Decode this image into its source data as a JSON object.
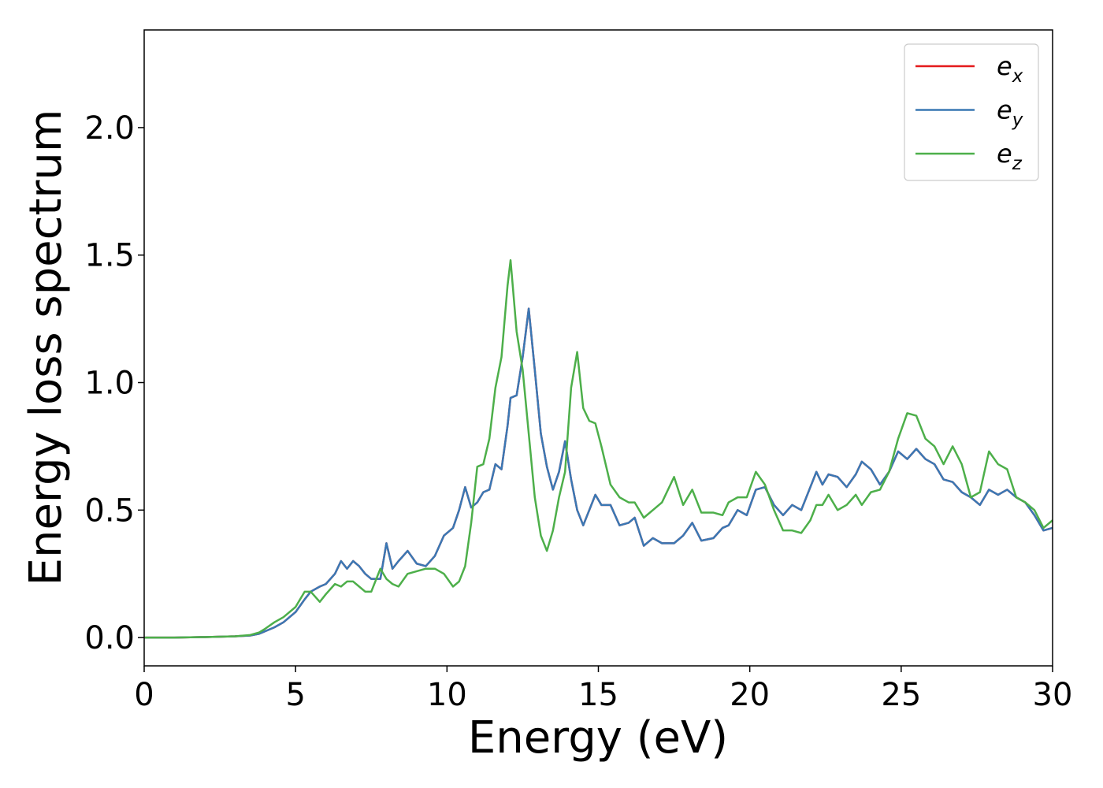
{
  "chart_data": {
    "type": "line",
    "x_label": "Energy (eV)",
    "y_label": "Energy loss spectrum",
    "xlim": [
      0,
      30
    ],
    "ylim": [
      -0.111,
      2.383
    ],
    "xticks": [
      0,
      5,
      10,
      15,
      20,
      25,
      30
    ],
    "yticks": [
      {
        "value": 0,
        "label": "0.0"
      },
      {
        "value": 0.5,
        "label": "0.5"
      },
      {
        "value": 1,
        "label": "1.0"
      },
      {
        "value": 1.5,
        "label": "1.5"
      },
      {
        "value": 2,
        "label": "2.0"
      }
    ],
    "legend": "upper right",
    "grid": false,
    "x": [
      0,
      1,
      2,
      3,
      3.5,
      3.8,
      4,
      4.3,
      4.6,
      5,
      5.3,
      5.5,
      5.8,
      6,
      6.3,
      6.5,
      6.7,
      6.9,
      7.1,
      7.3,
      7.5,
      7.8,
      8,
      8.2,
      8.4,
      8.7,
      9,
      9.3,
      9.6,
      9.9,
      10.2,
      10.4,
      10.6,
      10.8,
      11,
      11.2,
      11.4,
      11.6,
      11.8,
      12,
      12.1,
      12.3,
      12.5,
      12.7,
      12.9,
      13.1,
      13.3,
      13.5,
      13.7,
      13.9,
      14.1,
      14.3,
      14.5,
      14.7,
      14.9,
      15.1,
      15.4,
      15.7,
      16,
      16.2,
      16.5,
      16.8,
      17.1,
      17.5,
      17.8,
      18.1,
      18.4,
      18.8,
      19.1,
      19.3,
      19.6,
      19.9,
      20.2,
      20.5,
      20.8,
      21.1,
      21.4,
      21.7,
      22,
      22.2,
      22.4,
      22.6,
      22.9,
      23.2,
      23.5,
      23.7,
      24,
      24.3,
      24.6,
      24.9,
      25.2,
      25.5,
      25.8,
      26.1,
      26.4,
      26.7,
      27,
      27.3,
      27.6,
      27.9,
      28.2,
      28.5,
      28.8,
      29.1,
      29.4,
      29.7,
      30
    ],
    "series": [
      {
        "name": "ex",
        "color": "#e41a1c",
        "values": [
          0,
          0,
          0.002,
          0.005,
          0.008,
          0.015,
          0.025,
          0.04,
          0.06,
          0.1,
          0.15,
          0.18,
          0.2,
          0.21,
          0.25,
          0.3,
          0.27,
          0.3,
          0.28,
          0.25,
          0.23,
          0.23,
          0.37,
          0.27,
          0.3,
          0.34,
          0.29,
          0.28,
          0.32,
          0.4,
          0.43,
          0.5,
          0.59,
          0.51,
          0.53,
          0.57,
          0.58,
          0.68,
          0.66,
          0.83,
          0.94,
          0.95,
          1.1,
          1.29,
          1.05,
          0.8,
          0.67,
          0.58,
          0.65,
          0.77,
          0.62,
          0.5,
          0.44,
          0.5,
          0.56,
          0.52,
          0.52,
          0.44,
          0.45,
          0.47,
          0.36,
          0.39,
          0.37,
          0.37,
          0.4,
          0.45,
          0.38,
          0.39,
          0.43,
          0.44,
          0.5,
          0.48,
          0.58,
          0.59,
          0.52,
          0.48,
          0.52,
          0.5,
          0.59,
          0.65,
          0.6,
          0.64,
          0.63,
          0.59,
          0.64,
          0.69,
          0.66,
          0.6,
          0.65,
          0.73,
          0.7,
          0.74,
          0.7,
          0.68,
          0.62,
          0.61,
          0.57,
          0.55,
          0.52,
          0.58,
          0.56,
          0.58,
          0.55,
          0.53,
          0.48,
          0.42,
          0.43
        ]
      },
      {
        "name": "ey",
        "color": "#3a78b4",
        "values": [
          0,
          0,
          0.002,
          0.005,
          0.008,
          0.015,
          0.025,
          0.04,
          0.06,
          0.1,
          0.15,
          0.18,
          0.2,
          0.21,
          0.25,
          0.3,
          0.27,
          0.3,
          0.28,
          0.25,
          0.23,
          0.23,
          0.37,
          0.27,
          0.3,
          0.34,
          0.29,
          0.28,
          0.32,
          0.4,
          0.43,
          0.5,
          0.59,
          0.51,
          0.53,
          0.57,
          0.58,
          0.68,
          0.66,
          0.83,
          0.94,
          0.95,
          1.1,
          1.29,
          1.05,
          0.8,
          0.67,
          0.58,
          0.65,
          0.77,
          0.62,
          0.5,
          0.44,
          0.5,
          0.56,
          0.52,
          0.52,
          0.44,
          0.45,
          0.47,
          0.36,
          0.39,
          0.37,
          0.37,
          0.4,
          0.45,
          0.38,
          0.39,
          0.43,
          0.44,
          0.5,
          0.48,
          0.58,
          0.59,
          0.52,
          0.48,
          0.52,
          0.5,
          0.59,
          0.65,
          0.6,
          0.64,
          0.63,
          0.59,
          0.64,
          0.69,
          0.66,
          0.6,
          0.65,
          0.73,
          0.7,
          0.74,
          0.7,
          0.68,
          0.62,
          0.61,
          0.57,
          0.55,
          0.52,
          0.58,
          0.56,
          0.58,
          0.55,
          0.53,
          0.48,
          0.42,
          0.43
        ]
      },
      {
        "name": "ez",
        "color": "#4daf4a",
        "values": [
          0,
          0,
          0.002,
          0.005,
          0.01,
          0.02,
          0.035,
          0.06,
          0.08,
          0.12,
          0.18,
          0.18,
          0.14,
          0.17,
          0.21,
          0.2,
          0.22,
          0.22,
          0.2,
          0.18,
          0.18,
          0.27,
          0.23,
          0.21,
          0.2,
          0.25,
          0.26,
          0.27,
          0.27,
          0.25,
          0.2,
          0.22,
          0.28,
          0.45,
          0.67,
          0.68,
          0.78,
          0.98,
          1.1,
          1.38,
          1.48,
          1.2,
          1.05,
          0.8,
          0.55,
          0.4,
          0.34,
          0.42,
          0.55,
          0.65,
          0.98,
          1.12,
          0.9,
          0.85,
          0.84,
          0.75,
          0.6,
          0.55,
          0.53,
          0.53,
          0.47,
          0.5,
          0.53,
          0.63,
          0.52,
          0.58,
          0.49,
          0.49,
          0.48,
          0.53,
          0.55,
          0.55,
          0.65,
          0.6,
          0.5,
          0.42,
          0.42,
          0.41,
          0.46,
          0.52,
          0.52,
          0.56,
          0.5,
          0.52,
          0.56,
          0.52,
          0.57,
          0.58,
          0.65,
          0.78,
          0.88,
          0.87,
          0.78,
          0.75,
          0.68,
          0.75,
          0.68,
          0.55,
          0.57,
          0.73,
          0.68,
          0.66,
          0.55,
          0.53,
          0.5,
          0.43,
          0.46
        ]
      }
    ]
  }
}
